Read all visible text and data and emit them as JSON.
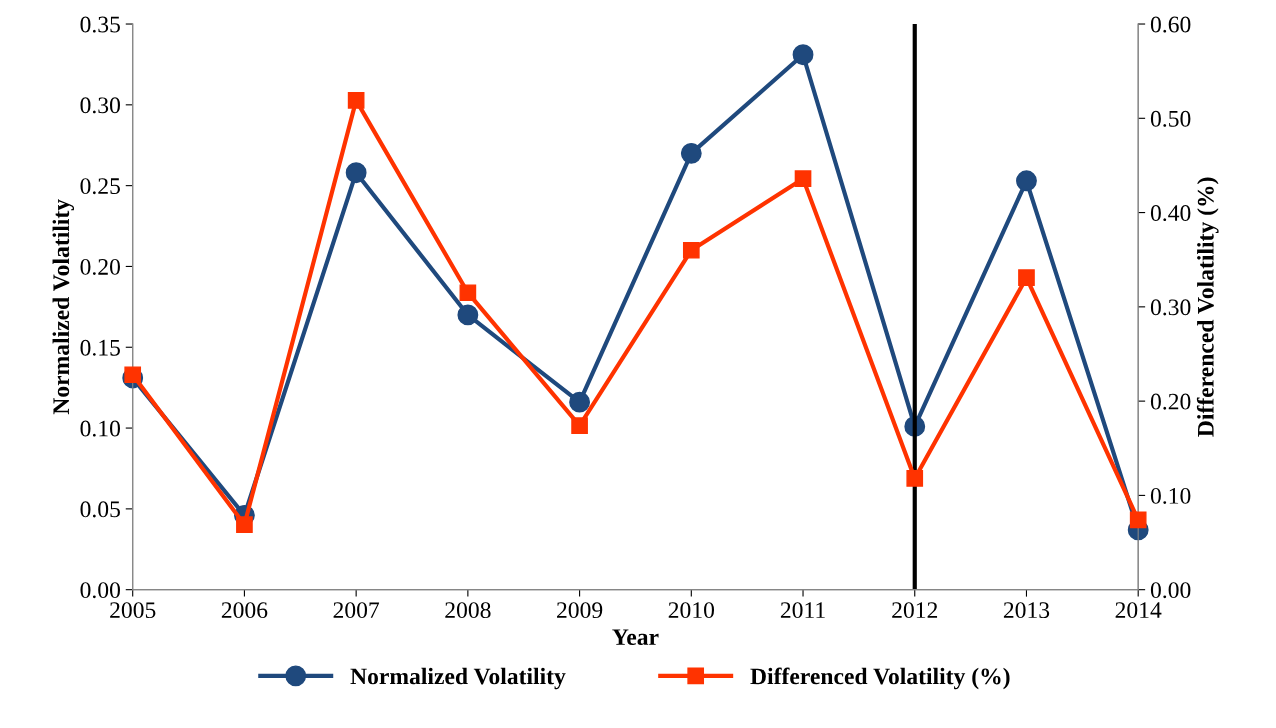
{
  "chart_data": {
    "type": "line",
    "xlabel": "Year",
    "ylabel": "Normalized Volatility",
    "y2label": "Differenced Volatility (%)",
    "x": [
      2005,
      2006,
      2007,
      2008,
      2009,
      2010,
      2011,
      2012,
      2013,
      2014
    ],
    "xlim": [
      2005,
      2014
    ],
    "xticks": [
      2005,
      2006,
      2007,
      2008,
      2009,
      2010,
      2011,
      2012,
      2013,
      2014
    ],
    "ylim": [
      0,
      0.35
    ],
    "yticks": [
      {
        "value": 0,
        "label": "0.00"
      },
      {
        "value": 0.05,
        "label": "0.05"
      },
      {
        "value": 0.1,
        "label": "0.10"
      },
      {
        "value": 0.15,
        "label": "0.15"
      },
      {
        "value": 0.2,
        "label": "0.20"
      },
      {
        "value": 0.25,
        "label": "0.25"
      },
      {
        "value": 0.3,
        "label": "0.30"
      },
      {
        "value": 0.35,
        "label": "0.35"
      }
    ],
    "y2lim": [
      0,
      0.6
    ],
    "y2ticks": [
      {
        "value": 0,
        "label": "0.00"
      },
      {
        "value": 0.1,
        "label": "0.10"
      },
      {
        "value": 0.2,
        "label": "0.20"
      },
      {
        "value": 0.3,
        "label": "0.30"
      },
      {
        "value": 0.4,
        "label": "0.40"
      },
      {
        "value": 0.5,
        "label": "0.50"
      },
      {
        "value": 0.6,
        "label": "0.60"
      }
    ],
    "series": [
      {
        "name": "Normalized Volatility",
        "color": "#1f497d",
        "marker": "circle",
        "values": [
          0.131,
          0.046,
          0.258,
          0.17,
          0.116,
          0.27,
          0.331,
          0.101,
          0.253,
          0.037
        ]
      },
      {
        "name": "Differenced Volatility (%)",
        "color": "#ff3300",
        "marker": "square",
        "axis": "y2",
        "values": [
          0.228,
          0.069,
          0.519,
          0.315,
          0.174,
          0.36,
          0.436,
          0.118,
          0.331,
          0.074
        ]
      }
    ],
    "ref_lines": [
      {
        "axis": "x",
        "value": 2012,
        "color": "#000000"
      }
    ],
    "grid": false,
    "legend": "bottom"
  }
}
